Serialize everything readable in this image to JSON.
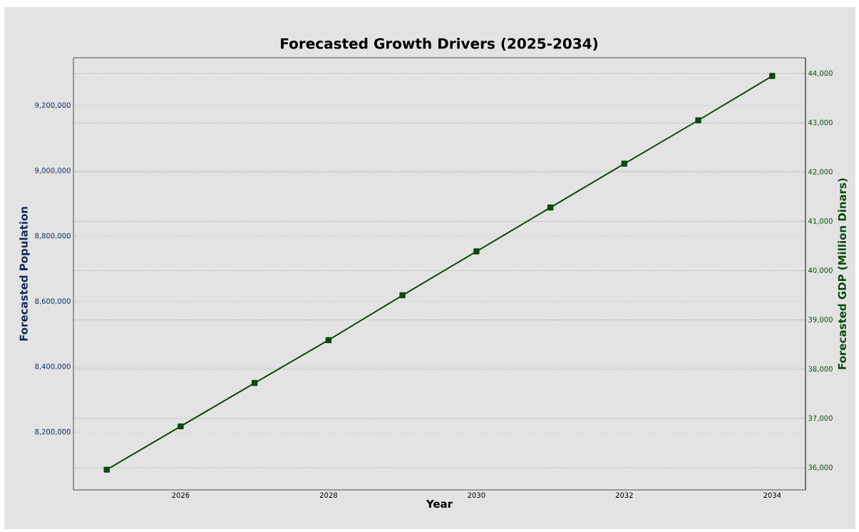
{
  "chart_data": {
    "type": "line",
    "title": "Forecasted Growth Drivers (2025-2034)",
    "xlabel": "Year",
    "ylabel": "Forecasted Population",
    "y2label": "Forecasted GDP (Million Dinars)",
    "x": [
      2025,
      2026,
      2027,
      2028,
      2029,
      2030,
      2031,
      2032,
      2033,
      2034
    ],
    "series": [
      {
        "color": "#0b2a5a",
        "axis": "y",
        "values": [
          null,
          null,
          null,
          null,
          null,
          null,
          null,
          null,
          null,
          null
        ]
      },
      {
        "color": "#0b4a0b",
        "axis": "y2",
        "values": [
          35960,
          36840,
          37720,
          38590,
          39500,
          40390,
          41280,
          42170,
          43050,
          43950
        ]
      }
    ],
    "xlim": [
      2024.55,
      2034.45
    ],
    "xticks": [
      2026,
      2028,
      2030,
      2032,
      2034
    ],
    "ylim": [
      8023000,
      9346000
    ],
    "yticks": [
      {
        "value": 8200000,
        "label": "8,200,000"
      },
      {
        "value": 8400000,
        "label": "8,400,000"
      },
      {
        "value": 8600000,
        "label": "8,600,000"
      },
      {
        "value": 8800000,
        "label": "8,800,000"
      },
      {
        "value": 9000000,
        "label": "9,000,000"
      },
      {
        "value": 9200000,
        "label": "9,200,000"
      }
    ],
    "y2lim": [
      35550,
      44320
    ],
    "y2ticks": [
      {
        "value": 36000,
        "label": "36,000"
      },
      {
        "value": 37000,
        "label": "37,000"
      },
      {
        "value": 38000,
        "label": "38,000"
      },
      {
        "value": 39000,
        "label": "39,000"
      },
      {
        "value": 40000,
        "label": "40,000"
      },
      {
        "value": 41000,
        "label": "41,000"
      },
      {
        "value": 42000,
        "label": "42,000"
      },
      {
        "value": 43000,
        "label": "43,000"
      },
      {
        "value": 44000,
        "label": "44,000"
      }
    ],
    "grid": "y",
    "marker": "square",
    "line_style": "solid"
  }
}
